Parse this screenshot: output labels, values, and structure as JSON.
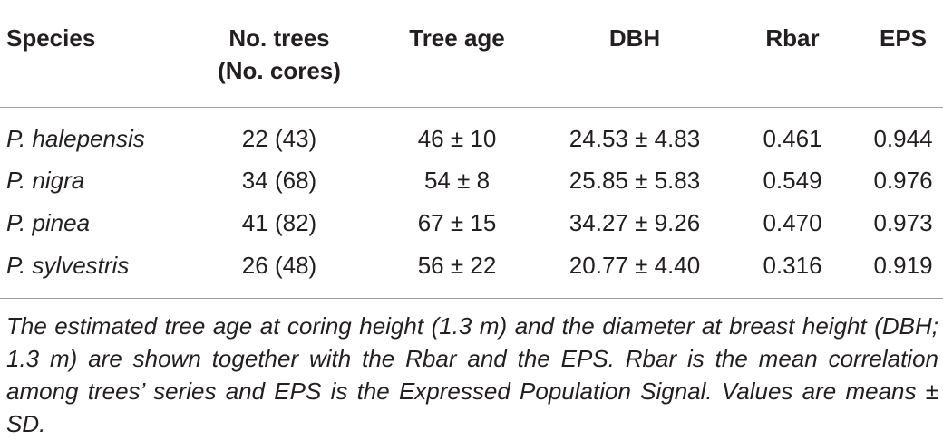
{
  "table": {
    "headers": {
      "species": "Species",
      "no_trees_line1": "No. trees",
      "no_trees_line2": "(No. cores)",
      "tree_age": "Tree age",
      "dbh": "DBH",
      "rbar": "Rbar",
      "eps": "EPS"
    },
    "rows": [
      {
        "species": "P. halepensis",
        "trees": "22 (43)",
        "age": "46 ± 10",
        "dbh": "24.53 ± 4.83",
        "rbar": "0.461",
        "eps": "0.944"
      },
      {
        "species": "P. nigra",
        "trees": "34 (68)",
        "age": "54 ± 8",
        "dbh": "25.85 ± 5.83",
        "rbar": "0.549",
        "eps": "0.976"
      },
      {
        "species": "P. pinea",
        "trees": "41 (82)",
        "age": "67 ± 15",
        "dbh": "34.27 ± 9.26",
        "rbar": "0.470",
        "eps": "0.973"
      },
      {
        "species": "P. sylvestris",
        "trees": "26 (48)",
        "age": "56 ± 22",
        "dbh": "20.77 ± 4.40",
        "rbar": "0.316",
        "eps": "0.919"
      }
    ],
    "footnote": "The estimated tree age at coring height (1.3 m) and the diameter at breast height (DBH; 1.3 m) are shown together with the Rbar and the EPS. Rbar is the mean correlation among trees’ series and EPS is the Expressed Population Signal. Values are means ± SD."
  }
}
